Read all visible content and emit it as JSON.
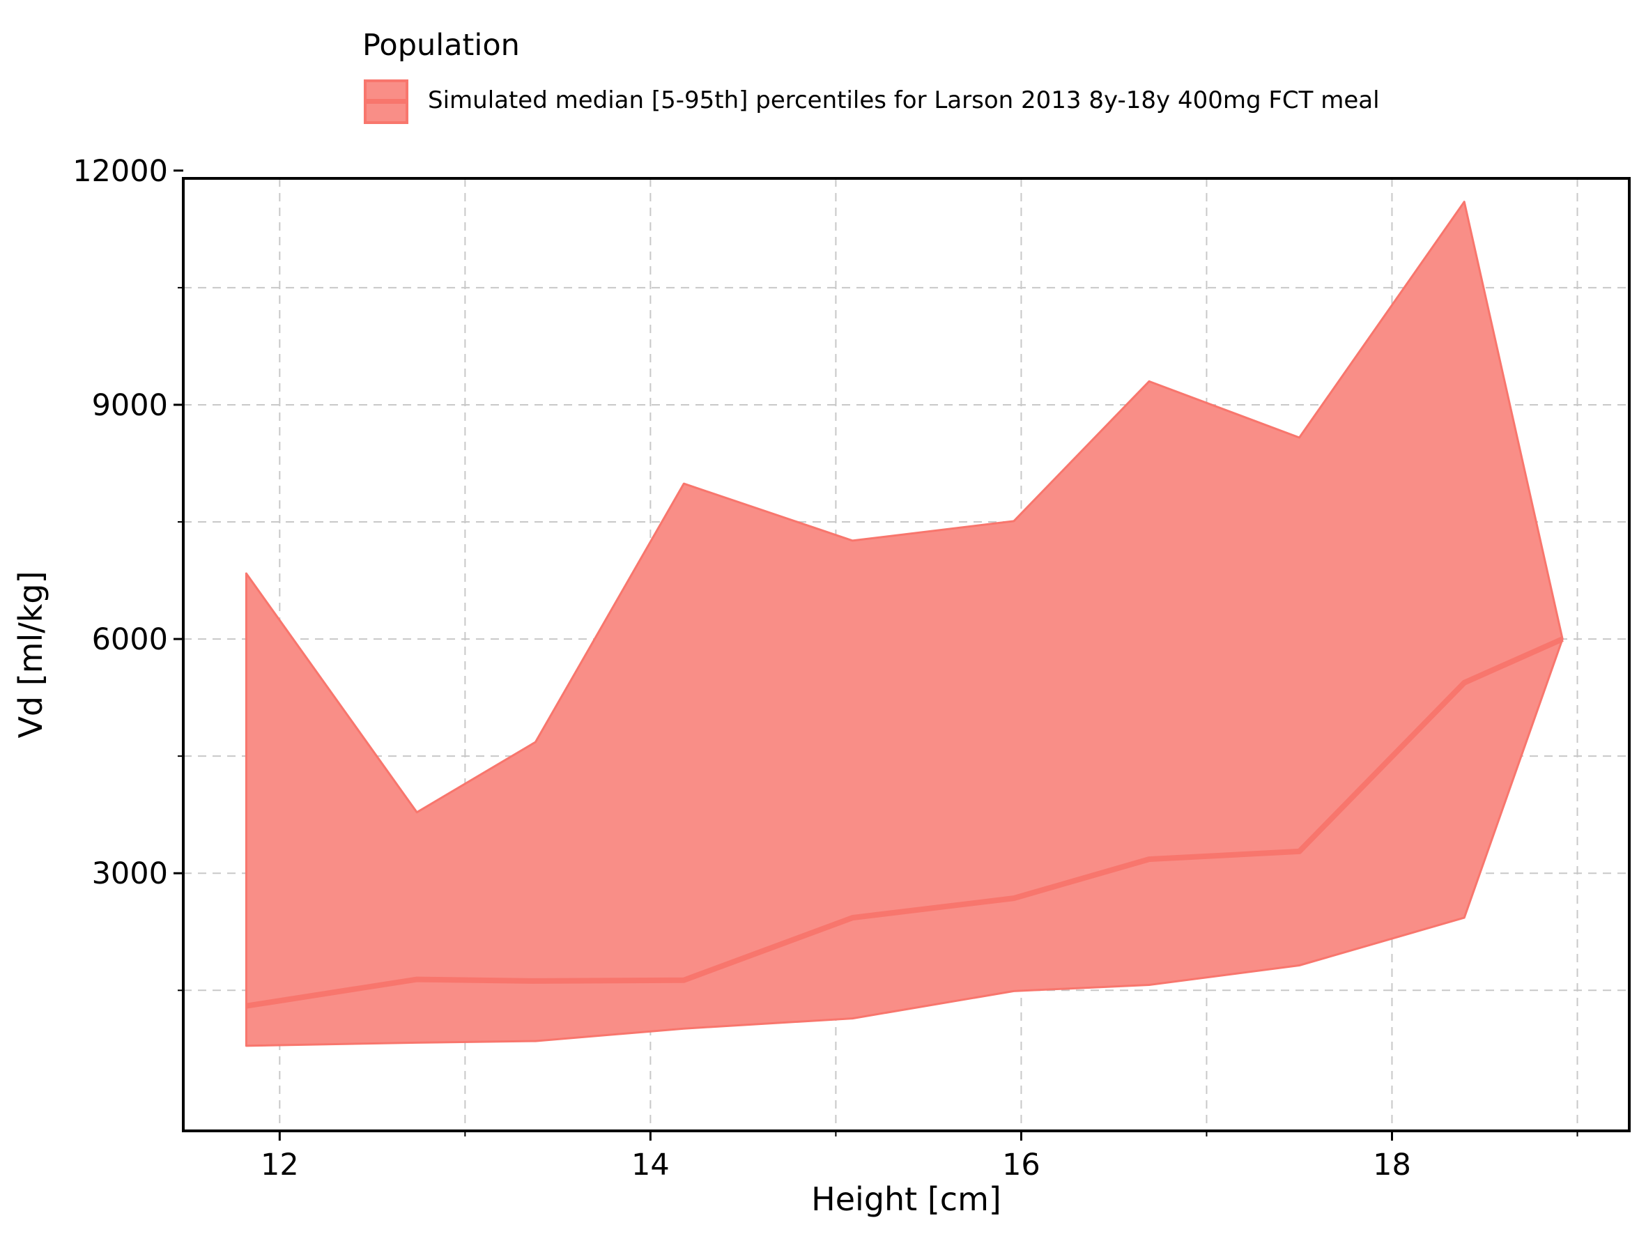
{
  "legend": {
    "title": "Population",
    "entry": "Simulated median [5-95th] percentiles for Larson 2013 8y-18y 400mg FCT meal"
  },
  "colors": {
    "fill": "#f98e87",
    "line": "#f8766d",
    "grid": "#c8c8c8"
  },
  "chart_data": {
    "type": "area",
    "xlabel": "Height [cm]",
    "ylabel": "Vd [ml/kg]",
    "xlim": [
      11.48,
      19.28
    ],
    "ylim": [
      -300,
      11900
    ],
    "xticks": [
      12,
      14,
      16,
      18
    ],
    "xtick_labels": [
      "12",
      "14",
      "16",
      "18"
    ],
    "xminor": [
      13,
      15,
      17,
      19
    ],
    "yticks": [
      3000,
      6000,
      9000,
      12000
    ],
    "ytick_labels": [
      "3000",
      "6000",
      "9000",
      "12000"
    ],
    "yminor": [
      1500,
      4500,
      7500,
      10500
    ],
    "grid": true,
    "legend_position": "top",
    "x": [
      11.82,
      12.74,
      13.38,
      14.18,
      15.09,
      15.96,
      16.69,
      17.5,
      18.39,
      18.92
    ],
    "series": [
      {
        "name": "median",
        "values": [
          1300,
          1640,
          1620,
          1630,
          2430,
          2680,
          3180,
          3280,
          5440,
          6000
        ]
      },
      {
        "name": "p5",
        "values": [
          790,
          830,
          850,
          1010,
          1140,
          1490,
          1570,
          1820,
          2430,
          6000
        ]
      },
      {
        "name": "p95",
        "values": [
          6840,
          3780,
          4680,
          7990,
          7260,
          7510,
          9300,
          8580,
          11600,
          6000
        ]
      }
    ]
  }
}
